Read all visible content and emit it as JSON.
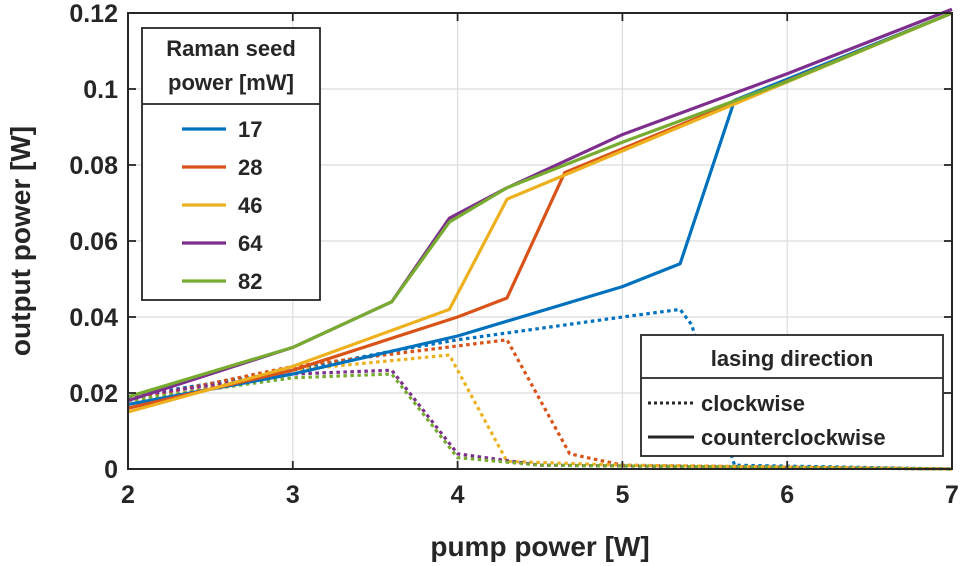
{
  "chart_data": {
    "type": "line",
    "xlabel": "pump power [W]",
    "ylabel": "output power [W]",
    "xlim": [
      2,
      7
    ],
    "ylim": [
      0,
      0.12
    ],
    "xticks": [
      2,
      3,
      4,
      5,
      6,
      7
    ],
    "xtick_labels": [
      "2",
      "3",
      "4",
      "5",
      "6",
      "7"
    ],
    "yticks": [
      0,
      0.02,
      0.04,
      0.06,
      0.08,
      0.1,
      0.12
    ],
    "ytick_labels": [
      "0",
      "0.02",
      "0.04",
      "0.06",
      "0.08",
      "0.1",
      "0.12"
    ],
    "grid": true,
    "legend_seed": {
      "title_line1": "Raman seed",
      "title_line2": "power [mW]",
      "placement": "top-left",
      "entries": [
        "17",
        "28",
        "46",
        "64",
        "82"
      ]
    },
    "legend_direction": {
      "title": "lasing direction",
      "placement": "bottom-right",
      "entries": [
        {
          "label": "clockwise",
          "style": "dotted"
        },
        {
          "label": "counterclockwise",
          "style": "solid"
        }
      ]
    },
    "series": [
      {
        "name": "17",
        "color": "#0072BD",
        "counterclockwise": {
          "x": [
            2,
            3,
            4,
            5,
            5.35,
            5.68,
            7
          ],
          "y": [
            0.017,
            0.025,
            0.035,
            0.048,
            0.054,
            0.097,
            0.12
          ]
        },
        "clockwise": {
          "x": [
            2,
            3,
            3.6,
            4,
            5,
            5.35,
            5.42,
            5.68,
            7
          ],
          "y": [
            0.019,
            0.026,
            0.031,
            0.034,
            0.04,
            0.042,
            0.038,
            0.001,
            0
          ]
        }
      },
      {
        "name": "28",
        "color": "#D95319",
        "counterclockwise": {
          "x": [
            2,
            3,
            4,
            4.3,
            4.65,
            7
          ],
          "y": [
            0.016,
            0.026,
            0.04,
            0.045,
            0.078,
            0.12
          ]
        },
        "clockwise": {
          "x": [
            2,
            3,
            4.3,
            4.68,
            5,
            7
          ],
          "y": [
            0.018,
            0.027,
            0.034,
            0.004,
            0.001,
            0
          ]
        }
      },
      {
        "name": "46",
        "color": "#EDB120",
        "counterclockwise": {
          "x": [
            2,
            3,
            3.95,
            4.3,
            7
          ],
          "y": [
            0.015,
            0.027,
            0.042,
            0.071,
            0.12
          ]
        },
        "clockwise": {
          "x": [
            2,
            3,
            3.95,
            4.3,
            5,
            7
          ],
          "y": [
            0.017,
            0.026,
            0.03,
            0.002,
            0.001,
            0
          ]
        }
      },
      {
        "name": "64",
        "color": "#7E2F8E",
        "counterclockwise": {
          "x": [
            2,
            3,
            3.6,
            3.95,
            4.3,
            5,
            6,
            7
          ],
          "y": [
            0.018,
            0.032,
            0.044,
            0.066,
            0.074,
            0.088,
            0.104,
            0.121
          ]
        },
        "clockwise": {
          "x": [
            2,
            3,
            3.6,
            4,
            4.5,
            7
          ],
          "y": [
            0.019,
            0.025,
            0.026,
            0.004,
            0.001,
            0
          ]
        }
      },
      {
        "name": "82",
        "color": "#77AC30",
        "counterclockwise": {
          "x": [
            2,
            3,
            3.6,
            3.95,
            4.3,
            5,
            6,
            7
          ],
          "y": [
            0.019,
            0.032,
            0.044,
            0.065,
            0.074,
            0.086,
            0.102,
            0.12
          ]
        },
        "clockwise": {
          "x": [
            2,
            3,
            3.6,
            4,
            4.5,
            7
          ],
          "y": [
            0.018,
            0.024,
            0.025,
            0.003,
            0.001,
            0
          ]
        }
      }
    ]
  }
}
